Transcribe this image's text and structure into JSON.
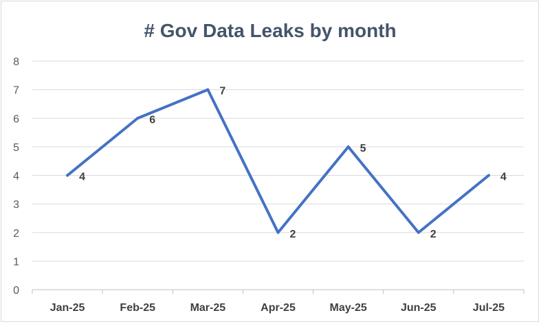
{
  "chart_data": {
    "type": "line",
    "title": "# Gov Data Leaks by month",
    "xlabel": "",
    "ylabel": "",
    "categories": [
      "Jan-25",
      "Feb-25",
      "Mar-25",
      "Apr-25",
      "May-25",
      "Jun-25",
      "Jul-25"
    ],
    "series": [
      {
        "values": [
          4,
          6,
          7,
          2,
          5,
          2,
          4
        ],
        "color": "#4472c4"
      }
    ],
    "ylim": [
      0,
      8
    ],
    "yticks": [
      0,
      1,
      2,
      3,
      4,
      5,
      6,
      7,
      8
    ],
    "grid": true,
    "legend": "none",
    "data_labels": true
  }
}
